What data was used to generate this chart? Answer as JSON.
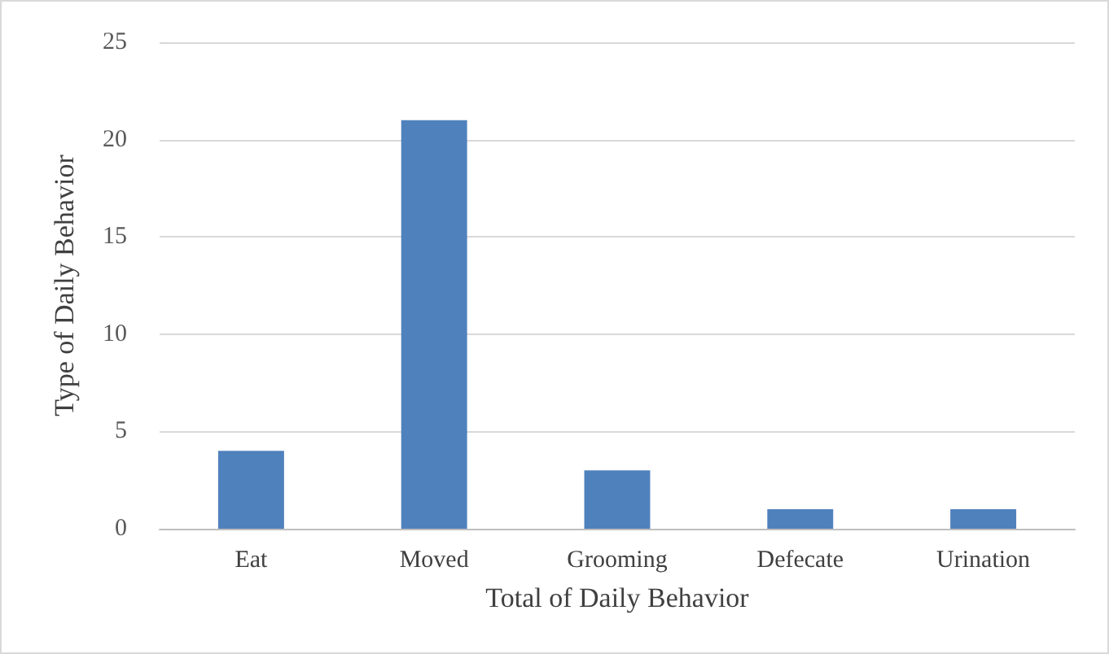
{
  "chart_data": {
    "type": "bar",
    "xlabel": "Total of Daily Behavior",
    "ylabel": "Type of Daily Behavior",
    "categories": [
      "Eat",
      "Moved",
      "Grooming",
      "Defecate",
      "Urination"
    ],
    "values": [
      4,
      21,
      3,
      1,
      1
    ],
    "color": "#4f81bd",
    "ylim": [
      0,
      25
    ],
    "yticks": [
      0,
      5,
      10,
      15,
      20,
      25
    ],
    "grid": "y"
  }
}
